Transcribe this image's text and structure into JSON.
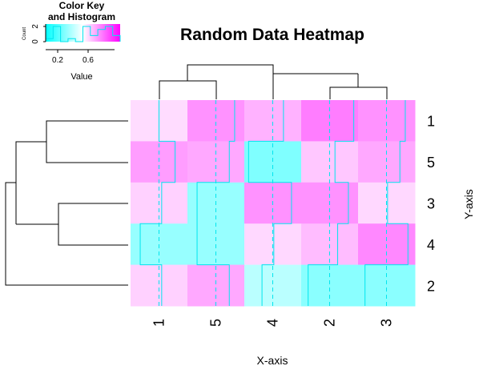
{
  "chart_data": {
    "type": "heatmap",
    "title": "Random Data Heatmap",
    "xlabel": "X-axis",
    "ylabel": "Y-axis",
    "x_categories": [
      "1",
      "5",
      "4",
      "2",
      "3"
    ],
    "y_categories": [
      "1",
      "5",
      "3",
      "4",
      "2"
    ],
    "values": [
      [
        0.5,
        0.85,
        0.7,
        0.95,
        0.85
      ],
      [
        0.8,
        0.75,
        0.05,
        0.6,
        0.75
      ],
      [
        0.55,
        0.15,
        0.85,
        0.85,
        0.52
      ],
      [
        0.15,
        0.15,
        0.52,
        0.65,
        0.9
      ],
      [
        0.55,
        0.75,
        0.3,
        0.1,
        0.1
      ]
    ],
    "color_scale": {
      "low": "#00FFFF",
      "mid": "#FFFFFF",
      "high": "#FF00FF",
      "range": [
        0,
        1
      ]
    },
    "trace_color": "#00E5EE",
    "col_dendrogram_order": [
      "1",
      "5",
      "4",
      "2",
      "3"
    ],
    "row_dendrogram_order": [
      "1",
      "5",
      "3",
      "4",
      "2"
    ]
  },
  "color_key": {
    "title_line1": "Color Key",
    "title_line2": "and Histogram",
    "xlabel": "Value",
    "ylabel": "Count",
    "x_ticks": [
      "0.2",
      "0.6"
    ],
    "y_ticks": [
      "0",
      "2"
    ]
  }
}
